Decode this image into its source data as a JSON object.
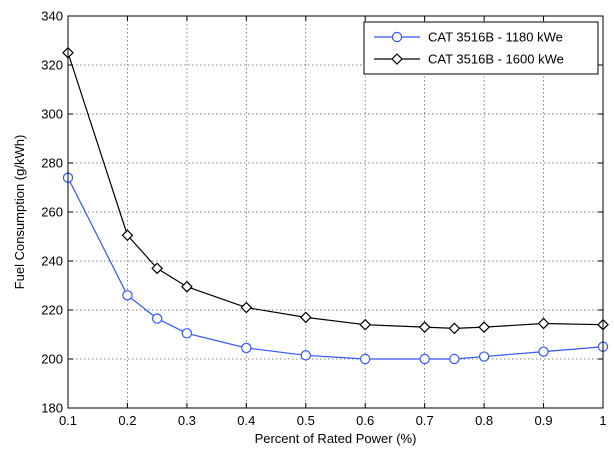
{
  "chart_data": {
    "type": "line",
    "title": "",
    "xlabel": "Percent of Rated Power (%)",
    "ylabel": "Fuel Consumption (g/kWh)",
    "xlim": [
      0.1,
      1
    ],
    "ylim": [
      180,
      340
    ],
    "xticks": [
      0.1,
      0.2,
      0.3,
      0.4,
      0.5,
      0.6,
      0.7,
      0.8,
      0.9,
      1
    ],
    "xtick_labels": [
      "0.1",
      "0.2",
      "0.3",
      "0.4",
      "0.5",
      "0.6",
      "0.7",
      "0.8",
      "0.9",
      "1"
    ],
    "yticks": [
      180,
      200,
      220,
      240,
      260,
      280,
      300,
      320,
      340
    ],
    "ytick_labels": [
      "180",
      "200",
      "220",
      "240",
      "260",
      "280",
      "300",
      "320",
      "340"
    ],
    "grid": true,
    "legend_position": "top-right",
    "series": [
      {
        "name": "CAT 3516B - 1180 kWe",
        "color": "#3355ff",
        "marker": "circle",
        "x": [
          0.1,
          0.2,
          0.25,
          0.3,
          0.4,
          0.5,
          0.6,
          0.7,
          0.75,
          0.8,
          0.9,
          1.0
        ],
        "y": [
          274,
          226,
          216.5,
          210.5,
          204.5,
          201.5,
          200,
          200,
          200,
          201,
          203,
          205
        ]
      },
      {
        "name": "CAT 3516B - 1600 kWe",
        "color": "#000000",
        "marker": "diamond",
        "x": [
          0.1,
          0.2,
          0.25,
          0.3,
          0.4,
          0.5,
          0.6,
          0.7,
          0.75,
          0.8,
          0.9,
          1.0
        ],
        "y": [
          325,
          250.5,
          237,
          229.5,
          221,
          217,
          214,
          213,
          212.5,
          213,
          214.5,
          214
        ]
      }
    ]
  }
}
